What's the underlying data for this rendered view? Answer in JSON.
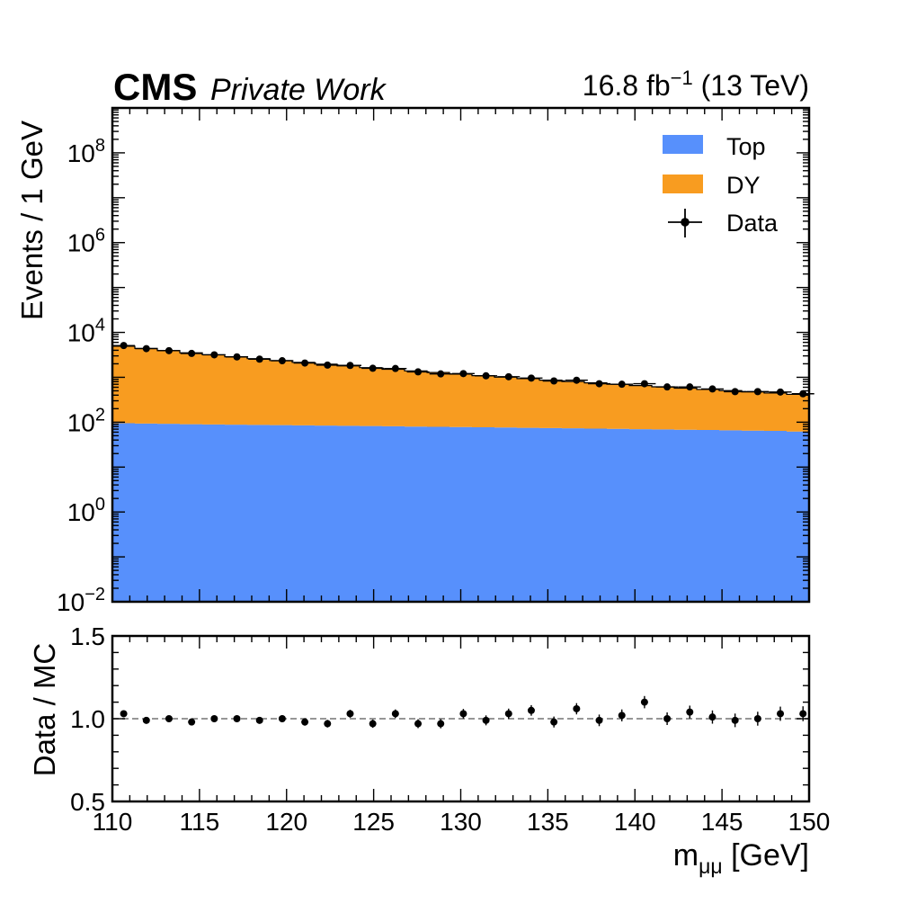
{
  "header": {
    "experiment": "CMS",
    "tag": "Private Work",
    "lumi_main": "16.8 fb",
    "lumi_exp": "−1",
    "lumi_energy": " (13 TeV)"
  },
  "legend": {
    "placement": "top-right",
    "items": [
      {
        "label": "Top",
        "color": "#5790fc",
        "kind": "box"
      },
      {
        "label": "DY",
        "color": "#f89c20",
        "kind": "box"
      },
      {
        "label": "Data",
        "color": "#000000",
        "kind": "errorbar"
      }
    ]
  },
  "chart_data": [
    {
      "type": "area",
      "panel": "main",
      "stacked": true,
      "yscale": "log",
      "ylabel": "Events / 1 GeV",
      "xlim": [
        110,
        150
      ],
      "ylim": [
        0.01,
        1000000000
      ],
      "yticks": [
        {
          "base": "10",
          "exp": "−2",
          "value": 0.01
        },
        {
          "base": "10",
          "exp": "0",
          "value": 1
        },
        {
          "base": "10",
          "exp": "2",
          "value": 100
        },
        {
          "base": "10",
          "exp": "4",
          "value": 10000
        },
        {
          "base": "10",
          "exp": "6",
          "value": 1000000
        },
        {
          "base": "10",
          "exp": "8",
          "value": 100000000
        }
      ],
      "x": [
        110.65,
        111.95,
        113.25,
        114.55,
        115.85,
        117.15,
        118.45,
        119.75,
        121.05,
        122.35,
        123.65,
        124.95,
        126.25,
        127.55,
        128.85,
        130.15,
        131.45,
        132.75,
        134.05,
        135.35,
        136.65,
        137.95,
        139.25,
        140.55,
        141.85,
        143.15,
        144.45,
        145.75,
        147.05,
        148.35,
        149.65
      ],
      "series": [
        {
          "name": "Top",
          "color": "#5790fc",
          "values": [
            95,
            93,
            92,
            90,
            89,
            88,
            87,
            86,
            85,
            84,
            83,
            82,
            81,
            80,
            79,
            78,
            77,
            76,
            75,
            74,
            73,
            72,
            71,
            70,
            69,
            68,
            67,
            66,
            65,
            64,
            62
          ]
        },
        {
          "name": "DY",
          "color": "#f89c20",
          "values": [
            4820,
            4310,
            3840,
            3430,
            3080,
            2780,
            2520,
            2280,
            2070,
            1880,
            1710,
            1560,
            1430,
            1310,
            1200,
            1100,
            1010,
            930,
            860,
            790,
            730,
            680,
            630,
            585,
            545,
            505,
            470,
            440,
            410,
            382,
            355
          ]
        },
        {
          "name": "Data",
          "color": "#000000",
          "kind": "points",
          "values": [
            5100,
            4350,
            3920,
            3400,
            3170,
            2850,
            2540,
            2340,
            2080,
            1870,
            1840,
            1590,
            1570,
            1320,
            1190,
            1210,
            1080,
            1030,
            960,
            830,
            860,
            720,
            700,
            720,
            610,
            610,
            550,
            480,
            480,
            470,
            430
          ]
        }
      ]
    },
    {
      "type": "scatter",
      "panel": "ratio",
      "ylabel": "Data / MC",
      "xlabel_main": "m",
      "xlabel_sub": "μμ",
      "xlabel_unit": " [GeV]",
      "xlim": [
        110,
        150
      ],
      "ylim": [
        0.5,
        1.5
      ],
      "xticks": [
        "110",
        "115",
        "120",
        "125",
        "130",
        "135",
        "140",
        "145",
        "150"
      ],
      "yticks": [
        "0.5",
        "1.0",
        "1.5"
      ],
      "reference_line": 1.0,
      "x": [
        110.65,
        111.95,
        113.25,
        114.55,
        115.85,
        117.15,
        118.45,
        119.75,
        121.05,
        122.35,
        123.65,
        124.95,
        126.25,
        127.55,
        128.85,
        130.15,
        131.45,
        132.75,
        134.05,
        135.35,
        136.65,
        137.95,
        139.25,
        140.55,
        141.85,
        143.15,
        144.45,
        145.75,
        147.05,
        148.35,
        149.65
      ],
      "values": [
        1.03,
        0.99,
        1.0,
        0.98,
        1.0,
        1.0,
        0.99,
        1.0,
        0.98,
        0.97,
        1.03,
        0.97,
        1.03,
        0.97,
        0.97,
        1.03,
        0.99,
        1.03,
        1.05,
        0.98,
        1.06,
        0.99,
        1.02,
        1.1,
        1.0,
        1.04,
        1.01,
        0.99,
        1.0,
        1.03,
        1.03
      ],
      "errors": [
        0.014,
        0.015,
        0.016,
        0.017,
        0.018,
        0.019,
        0.02,
        0.021,
        0.022,
        0.023,
        0.024,
        0.025,
        0.026,
        0.027,
        0.028,
        0.029,
        0.03,
        0.031,
        0.032,
        0.033,
        0.034,
        0.035,
        0.036,
        0.037,
        0.038,
        0.039,
        0.04,
        0.041,
        0.042,
        0.043,
        0.045
      ]
    }
  ]
}
